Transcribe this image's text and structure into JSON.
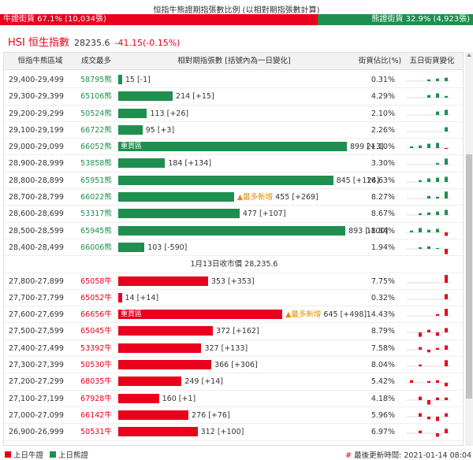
{
  "header": {
    "title": "恒指牛熊證期指張數比例 (以相對期指張數計算)",
    "bull_label": "牛證街貨 67.1% (10,034張)",
    "bear_label": "熊證街貨 32.9% (4,923張)",
    "bull_ratio": 0.671
  },
  "index": {
    "name": "HSI 恒生指數",
    "value": "28235.6",
    "change": "-41.15(-0.15%)"
  },
  "table": {
    "col_range": "恒指牛熊區域",
    "col_code": "成交最多",
    "col_count": "相對期指張數 [括號內為一日變化]",
    "col_pct": "街貨佔比(%)",
    "col_spark": "五日街貨變化",
    "heavy_label": "重貨區",
    "new_label": "▲最多新增",
    "separator": "1月13日收市價 28,235.6",
    "bear_rows": [
      {
        "range": "29,400-29,499",
        "code": "58795熊",
        "count": "15",
        "change": "[-1]",
        "pct": "0.31%",
        "value": 15,
        "spark": [
          0,
          0,
          2,
          3,
          4
        ]
      },
      {
        "range": "29,300-29,399",
        "code": "65106熊",
        "count": "214",
        "change": "[+15]",
        "pct": "4.29%",
        "value": 214,
        "spark": [
          0,
          0,
          3,
          5,
          2
        ]
      },
      {
        "range": "29,200-29,299",
        "code": "50524熊",
        "count": "113",
        "change": "[+26]",
        "pct": "2.10%",
        "value": 113,
        "spark": [
          0,
          0,
          0,
          4,
          6
        ]
      },
      {
        "range": "29,100-29,199",
        "code": "66722熊",
        "count": "95",
        "change": "[+3]",
        "pct": "2.26%",
        "value": 95,
        "spark": [
          0,
          0,
          0,
          0,
          5
        ]
      },
      {
        "range": "29,000-29,099",
        "code": "66052熊",
        "count": "899",
        "change": "[+3]",
        "pct": "21.10%",
        "value": 899,
        "heavy": true,
        "spark": [
          2,
          3,
          5,
          6,
          -1
        ]
      },
      {
        "range": "28,900-28,999",
        "code": "53858熊",
        "count": "184",
        "change": "[+134]",
        "pct": "3.30%",
        "value": 184,
        "spark": [
          0,
          0,
          0,
          2,
          7
        ]
      },
      {
        "range": "28,800-28,899",
        "code": "65951熊",
        "count": "845",
        "change": "[+124]",
        "pct": "16.63%",
        "value": 845,
        "spark": [
          0,
          2,
          4,
          5,
          6
        ]
      },
      {
        "range": "28,700-28,799",
        "code": "66022熊",
        "count": "455",
        "change": "[+269]",
        "pct": "8.27%",
        "value": 455,
        "new": true,
        "spark": [
          0,
          0,
          3,
          2,
          8
        ]
      },
      {
        "range": "28,600-28,699",
        "code": "53317熊",
        "count": "477",
        "change": "[+107]",
        "pct": "8.67%",
        "value": 477,
        "spark": [
          0,
          2,
          3,
          4,
          6
        ]
      },
      {
        "range": "28,500-28,599",
        "code": "65945熊",
        "count": "893",
        "change": "[-100]",
        "pct": "18.84%",
        "value": 893,
        "spark": [
          2,
          5,
          3,
          4,
          -4
        ]
      },
      {
        "range": "28,400-28,499",
        "code": "66006熊",
        "count": "103",
        "change": "[-590]",
        "pct": "1.94%",
        "value": 103,
        "spark": [
          0,
          2,
          3,
          1,
          -6
        ]
      }
    ],
    "bull_rows": [
      {
        "range": "27,800-27,899",
        "code": "65058牛",
        "count": "353",
        "change": "[+353]",
        "pct": "7.75%",
        "value": 353,
        "spark": [
          0,
          0,
          0,
          0,
          9
        ]
      },
      {
        "range": "27,700-27,799",
        "code": "65052牛",
        "count": "14",
        "change": "[+14]",
        "pct": "0.32%",
        "value": 14,
        "spark": [
          0,
          0,
          0,
          0,
          6
        ]
      },
      {
        "range": "27,600-27,699",
        "code": "66656牛",
        "count": "645",
        "change": "[+498]",
        "pct": "14.43%",
        "value": 645,
        "heavy": true,
        "new": true,
        "spark": [
          0,
          0,
          0,
          2,
          8
        ]
      },
      {
        "range": "27,500-27,599",
        "code": "65045牛",
        "count": "372",
        "change": "[+162]",
        "pct": "8.79%",
        "value": 372,
        "spark": [
          0,
          -5,
          3,
          -4,
          5
        ]
      },
      {
        "range": "27,400-27,499",
        "code": "53392牛",
        "count": "327",
        "change": "[+133]",
        "pct": "7.58%",
        "value": 327,
        "spark": [
          0,
          3,
          -3,
          2,
          5
        ]
      },
      {
        "range": "27,300-27,399",
        "code": "50530牛",
        "count": "366",
        "change": "[+306]",
        "pct": "8.04%",
        "value": 366,
        "spark": [
          0,
          2,
          0,
          0,
          7
        ]
      },
      {
        "range": "27,200-27,299",
        "code": "68035牛",
        "count": "249",
        "change": "[+14]",
        "pct": "5.42%",
        "value": 249,
        "spark": [
          3,
          0,
          2,
          3,
          -4
        ]
      },
      {
        "range": "27,100-27,199",
        "code": "67928牛",
        "count": "160",
        "change": "[+1]",
        "pct": "4.18%",
        "value": 160,
        "spark": [
          0,
          4,
          -5,
          3,
          3
        ]
      },
      {
        "range": "27,000-27,099",
        "code": "66142牛",
        "count": "276",
        "change": "[+76]",
        "pct": "5.96%",
        "value": 276,
        "spark": [
          0,
          4,
          -3,
          -5,
          4
        ]
      },
      {
        "range": "26,900-26,999",
        "code": "50531牛",
        "count": "312",
        "change": "[+100]",
        "pct": "6.97%",
        "value": 312,
        "spark": [
          0,
          3,
          0,
          -4,
          5
        ]
      }
    ]
  },
  "footer": {
    "legend_bull": "上日牛證",
    "legend_bear": "上日熊證",
    "updated": "最後更新時間: 2021-01-14 08:04"
  },
  "colors": {
    "bull": "#e8001c",
    "bear": "#1e8f4e",
    "new": "#e88a00"
  }
}
